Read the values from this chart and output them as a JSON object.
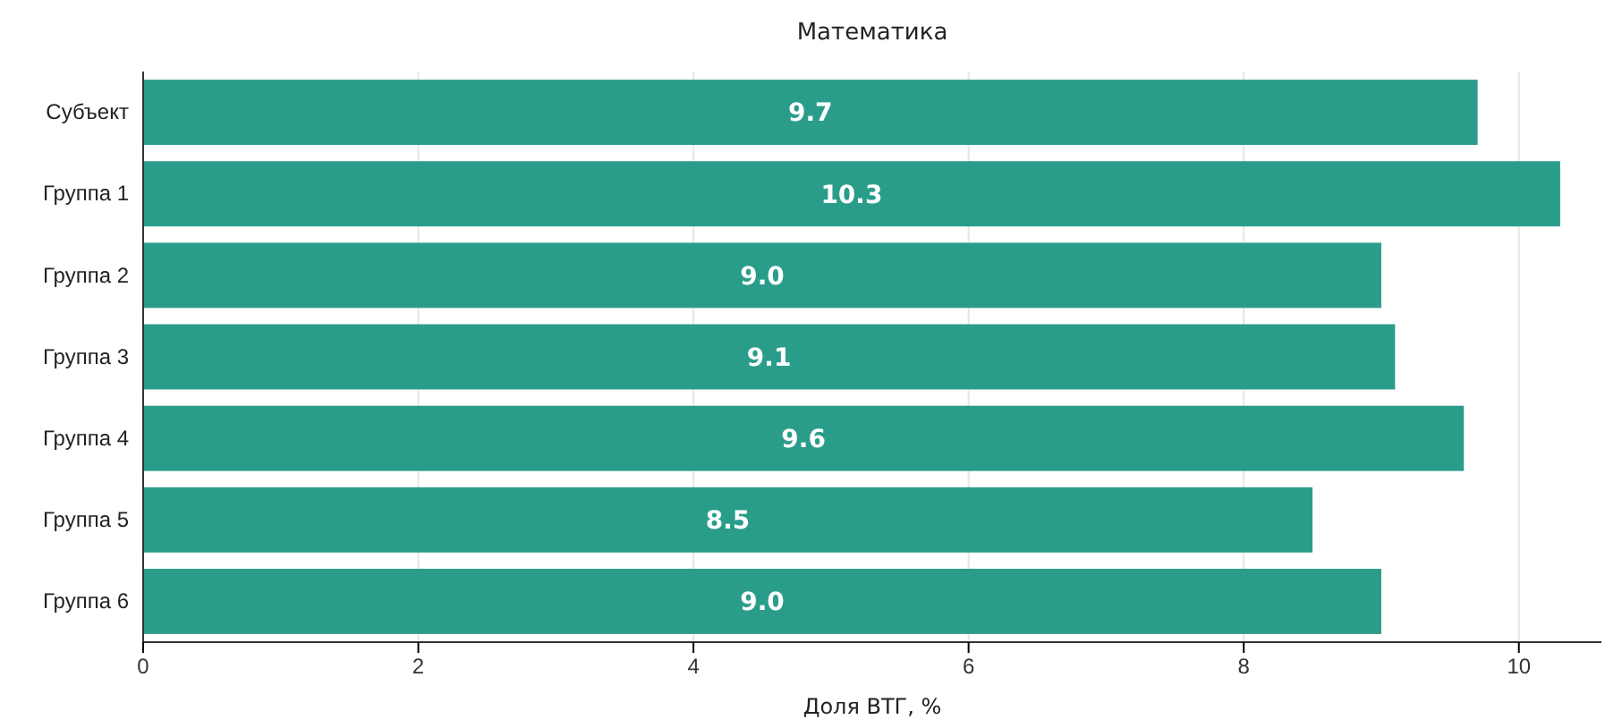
{
  "chart_data": {
    "type": "bar",
    "orientation": "horizontal",
    "title": "Математика",
    "xlabel": "Доля ВТГ, %",
    "categories": [
      "Субъект",
      "Группа 1",
      "Группа 2",
      "Группа 3",
      "Группа 4",
      "Группа 5",
      "Группа 6"
    ],
    "values": [
      9.7,
      10.3,
      9.0,
      9.1,
      9.6,
      8.5,
      9.0
    ],
    "value_labels": [
      "9.7",
      "10.3",
      "9.0",
      "9.1",
      "9.6",
      "8.5",
      "9.0"
    ],
    "color": "#2a9d8a",
    "xlim": [
      0,
      10.6
    ],
    "xticks": [
      0,
      2,
      4,
      6,
      8,
      10
    ],
    "grid": "x"
  }
}
